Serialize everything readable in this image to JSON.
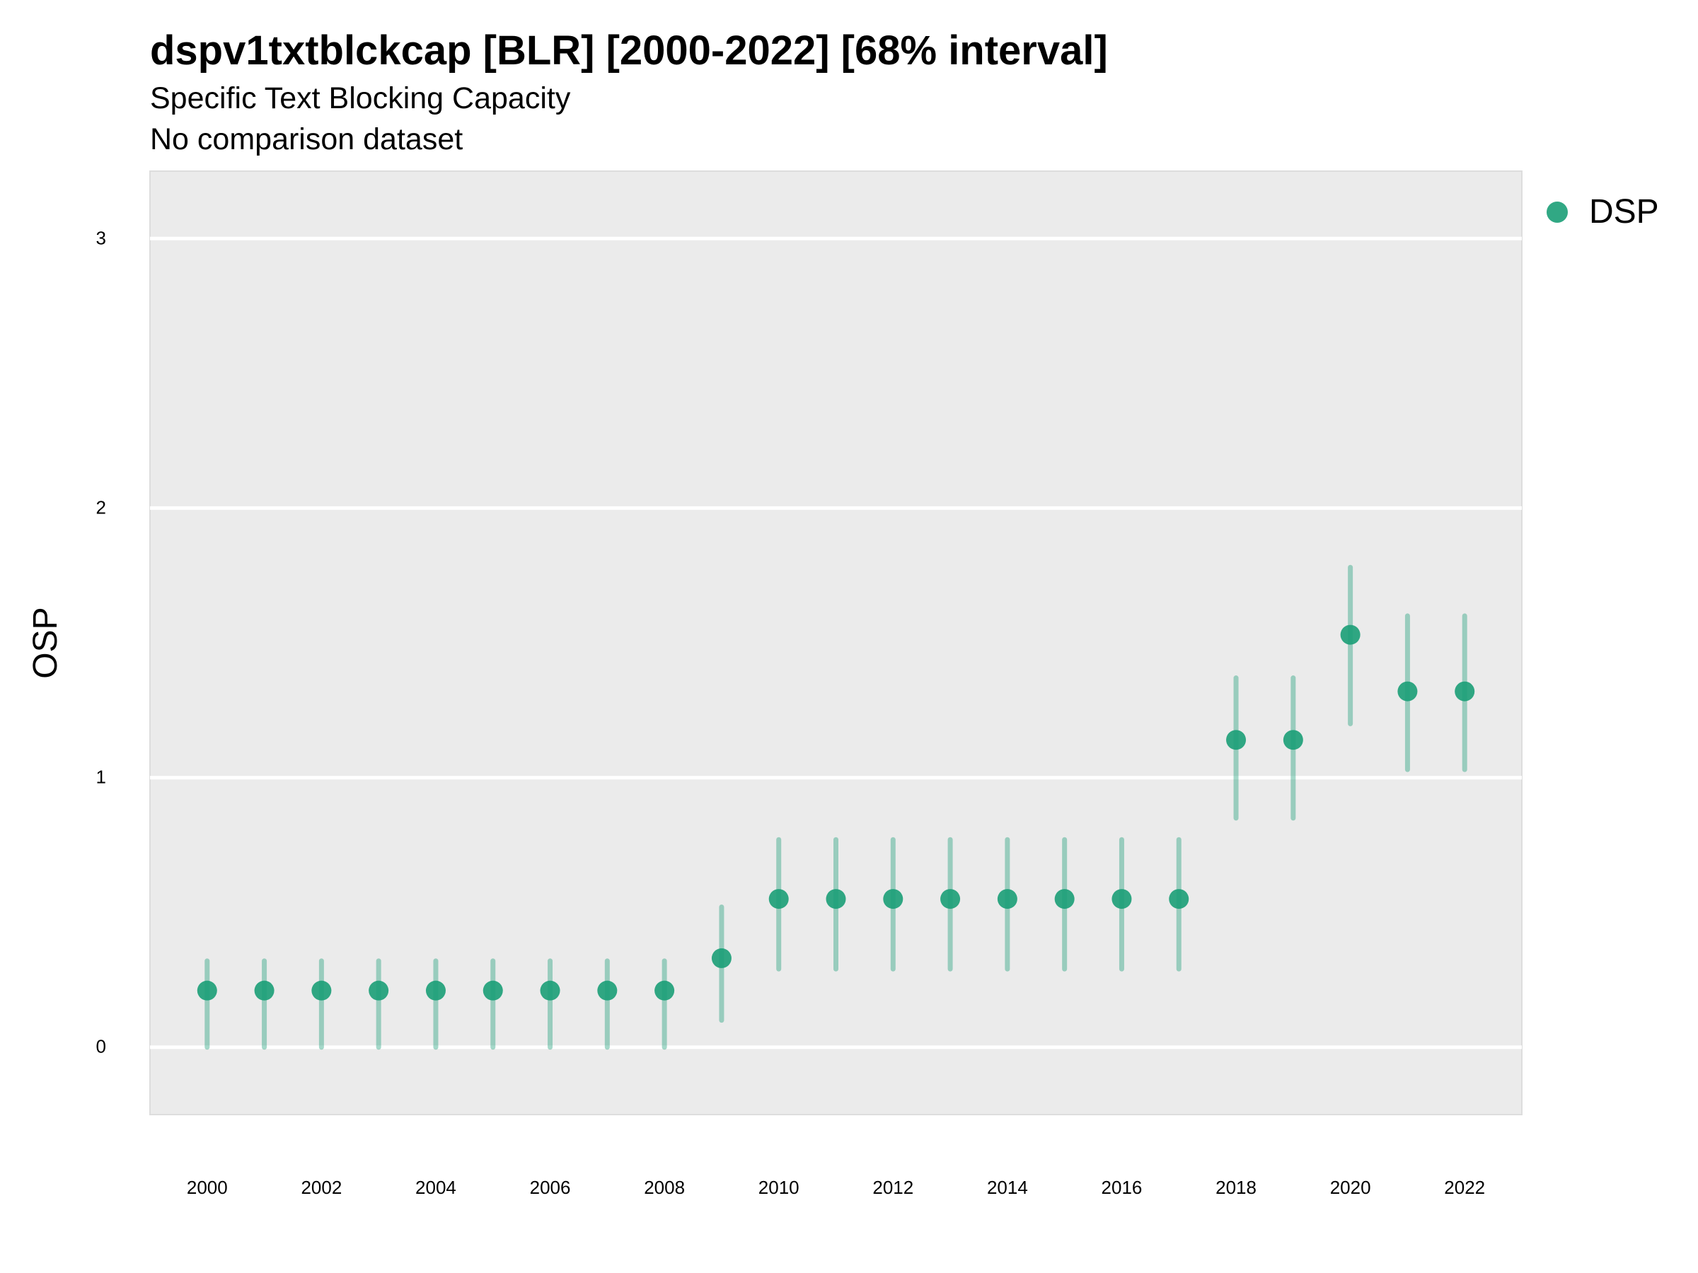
{
  "chart_data": {
    "type": "scatter",
    "title": "dspv1txtblckcap [BLR] [2000-2022] [68% interval]",
    "subtitle": "Specific Text Blocking Capacity",
    "caption": "No comparison dataset",
    "xlabel": "",
    "ylabel": "OSP",
    "xlim": [
      1999,
      2023
    ],
    "ylim": [
      -0.25,
      3.25
    ],
    "x_ticks": [
      2000,
      2002,
      2004,
      2006,
      2008,
      2010,
      2012,
      2014,
      2016,
      2018,
      2020,
      2022
    ],
    "y_ticks": [
      0,
      1,
      2,
      3
    ],
    "grid": true,
    "legend_position": "right",
    "series": [
      {
        "name": "DSP",
        "color": "#1b9e77",
        "points": [
          {
            "x": 2000,
            "y": 0.21,
            "lower": 0.0,
            "upper": 0.32
          },
          {
            "x": 2001,
            "y": 0.21,
            "lower": 0.0,
            "upper": 0.32
          },
          {
            "x": 2002,
            "y": 0.21,
            "lower": 0.0,
            "upper": 0.32
          },
          {
            "x": 2003,
            "y": 0.21,
            "lower": 0.0,
            "upper": 0.32
          },
          {
            "x": 2004,
            "y": 0.21,
            "lower": 0.0,
            "upper": 0.32
          },
          {
            "x": 2005,
            "y": 0.21,
            "lower": 0.0,
            "upper": 0.32
          },
          {
            "x": 2006,
            "y": 0.21,
            "lower": 0.0,
            "upper": 0.32
          },
          {
            "x": 2007,
            "y": 0.21,
            "lower": 0.0,
            "upper": 0.32
          },
          {
            "x": 2008,
            "y": 0.21,
            "lower": 0.0,
            "upper": 0.32
          },
          {
            "x": 2009,
            "y": 0.33,
            "lower": 0.1,
            "upper": 0.52
          },
          {
            "x": 2010,
            "y": 0.55,
            "lower": 0.29,
            "upper": 0.77
          },
          {
            "x": 2011,
            "y": 0.55,
            "lower": 0.29,
            "upper": 0.77
          },
          {
            "x": 2012,
            "y": 0.55,
            "lower": 0.29,
            "upper": 0.77
          },
          {
            "x": 2013,
            "y": 0.55,
            "lower": 0.29,
            "upper": 0.77
          },
          {
            "x": 2014,
            "y": 0.55,
            "lower": 0.29,
            "upper": 0.77
          },
          {
            "x": 2015,
            "y": 0.55,
            "lower": 0.29,
            "upper": 0.77
          },
          {
            "x": 2016,
            "y": 0.55,
            "lower": 0.29,
            "upper": 0.77
          },
          {
            "x": 2017,
            "y": 0.55,
            "lower": 0.29,
            "upper": 0.77
          },
          {
            "x": 2018,
            "y": 1.14,
            "lower": 0.85,
            "upper": 1.37
          },
          {
            "x": 2019,
            "y": 1.14,
            "lower": 0.85,
            "upper": 1.37
          },
          {
            "x": 2020,
            "y": 1.53,
            "lower": 1.2,
            "upper": 1.78
          },
          {
            "x": 2021,
            "y": 1.32,
            "lower": 1.03,
            "upper": 1.6
          },
          {
            "x": 2022,
            "y": 1.32,
            "lower": 1.03,
            "upper": 1.6
          }
        ]
      }
    ]
  }
}
